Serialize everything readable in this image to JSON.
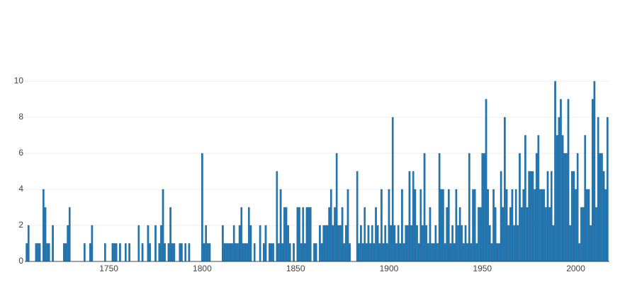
{
  "chart_data": {
    "type": "bar",
    "color": "#1f77b4",
    "grid": true,
    "x": [
      1706,
      1707,
      1711,
      1712,
      1713,
      1715,
      1716,
      1717,
      1718,
      1720,
      1726,
      1727,
      1728,
      1729,
      1737,
      1740,
      1741,
      1748,
      1752,
      1753,
      1754,
      1756,
      1759,
      1761,
      1766,
      1768,
      1771,
      1772,
      1775,
      1777,
      1778,
      1779,
      1780,
      1782,
      1783,
      1784,
      1785,
      1788,
      1789,
      1791,
      1793,
      1800,
      1801,
      1802,
      1803,
      1804,
      1811,
      1812,
      1813,
      1814,
      1815,
      1816,
      1817,
      1818,
      1819,
      1820,
      1821,
      1822,
      1823,
      1824,
      1825,
      1826,
      1828,
      1831,
      1833,
      1834,
      1836,
      1837,
      1838,
      1840,
      1841,
      1842,
      1843,
      1844,
      1845,
      1846,
      1847,
      1849,
      1851,
      1852,
      1853,
      1854,
      1855,
      1856,
      1857,
      1858,
      1860,
      1861,
      1863,
      1864,
      1865,
      1866,
      1867,
      1868,
      1869,
      1870,
      1871,
      1872,
      1873,
      1874,
      1875,
      1876,
      1877,
      1878,
      1879,
      1883,
      1884,
      1885,
      1886,
      1887,
      1888,
      1889,
      1890,
      1891,
      1892,
      1893,
      1894,
      1895,
      1896,
      1897,
      1898,
      1899,
      1900,
      1901,
      1902,
      1903,
      1904,
      1905,
      1906,
      1907,
      1908,
      1909,
      1910,
      1911,
      1912,
      1913,
      1914,
      1915,
      1916,
      1917,
      1918,
      1919,
      1920,
      1921,
      1922,
      1923,
      1924,
      1925,
      1926,
      1927,
      1928,
      1929,
      1930,
      1931,
      1932,
      1933,
      1934,
      1935,
      1936,
      1937,
      1938,
      1939,
      1940,
      1941,
      1942,
      1943,
      1944,
      1945,
      1946,
      1947,
      1948,
      1949,
      1950,
      1951,
      1952,
      1953,
      1954,
      1955,
      1956,
      1957,
      1958,
      1959,
      1960,
      1961,
      1962,
      1963,
      1964,
      1965,
      1966,
      1967,
      1968,
      1969,
      1970,
      1971,
      1972,
      1973,
      1974,
      1975,
      1976,
      1977,
      1978,
      1979,
      1980,
      1981,
      1982,
      1983,
      1984,
      1985,
      1986,
      1987,
      1988,
      1989,
      1990,
      1991,
      1992,
      1993,
      1994,
      1995,
      1996,
      1997,
      1998,
      1999,
      2000,
      2001,
      2002,
      2003,
      2004,
      2005,
      2006,
      2007,
      2008,
      2009,
      2010,
      2011,
      2012,
      2013,
      2014,
      2015,
      2016,
      2017
    ],
    "values": [
      1,
      2,
      1,
      1,
      1,
      4,
      3,
      1,
      1,
      2,
      1,
      1,
      2,
      3,
      1,
      1,
      2,
      1,
      1,
      1,
      1,
      1,
      1,
      1,
      2,
      1,
      2,
      1,
      2,
      1,
      2,
      4,
      1,
      1,
      3,
      1,
      1,
      1,
      1,
      1,
      1,
      6,
      1,
      2,
      1,
      1,
      2,
      1,
      1,
      1,
      1,
      1,
      2,
      1,
      1,
      2,
      3,
      1,
      1,
      1,
      3,
      2,
      1,
      2,
      1,
      2,
      1,
      1,
      1,
      5,
      1,
      4,
      1,
      3,
      3,
      2,
      1,
      1,
      3,
      3,
      1,
      3,
      1,
      3,
      3,
      3,
      1,
      1,
      2,
      1,
      2,
      2,
      2,
      3,
      4,
      2,
      3,
      6,
      2,
      2,
      3,
      1,
      2,
      4,
      1,
      5,
      1,
      2,
      1,
      3,
      1,
      2,
      1,
      2,
      1,
      3,
      2,
      1,
      4,
      1,
      2,
      1,
      4,
      2,
      8,
      2,
      1,
      2,
      1,
      4,
      1,
      2,
      2,
      5,
      2,
      5,
      4,
      2,
      1,
      4,
      2,
      6,
      2,
      1,
      3,
      1,
      1,
      2,
      1,
      6,
      4,
      4,
      1,
      3,
      4,
      1,
      2,
      1,
      4,
      2,
      3,
      2,
      1,
      2,
      1,
      6,
      1,
      4,
      4,
      1,
      3,
      3,
      6,
      6,
      9,
      4,
      2,
      1,
      4,
      3,
      1,
      1,
      5,
      3,
      8,
      4,
      2,
      3,
      4,
      2,
      4,
      2,
      6,
      3,
      4,
      7,
      3,
      5,
      5,
      5,
      4,
      6,
      7,
      4,
      4,
      4,
      3,
      5,
      3,
      5,
      2,
      10,
      7,
      8,
      9,
      7,
      6,
      6,
      9,
      2,
      5,
      5,
      4,
      6,
      1,
      3,
      3,
      7,
      4,
      4,
      2,
      9,
      10,
      3,
      8,
      6,
      6,
      5,
      4,
      8
    ],
    "xlim": [
      1705,
      2018
    ],
    "xticks": [
      1750,
      1800,
      1850,
      1900,
      1950,
      2000
    ],
    "ylim": [
      0,
      10.4
    ],
    "yticks": [
      0,
      2,
      4,
      6,
      8,
      10
    ]
  }
}
